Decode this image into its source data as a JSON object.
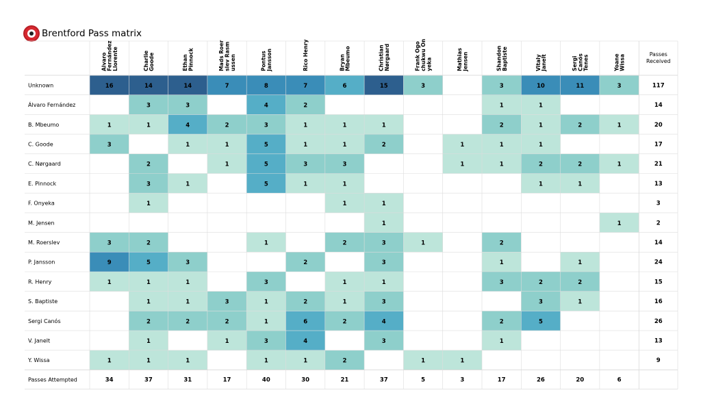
{
  "page": {
    "title": "Brentford Pass matrix",
    "logo": "brentford-crest-icon"
  },
  "chart_data": {
    "type": "heatmap",
    "title": "Brentford Pass matrix",
    "receivers": [
      "Alvaro\nFernández\nLlorente",
      "Charlie\nGoode",
      "Ethan\nPinnock",
      "Mads Roer\nslev Rasm\nussen",
      "Pontus\nJansson",
      "Rico Henry",
      "Bryan\nMbeumo",
      "Christian\nNørgaard",
      "Frank Ogo\nchukwu On\nyeka",
      "Mathias\nJensen",
      "Shandon\nBaptiste",
      "Vitaly\nJanelt",
      "Sergi\nCanós\nTenes",
      "Yoane\nWissa"
    ],
    "passers": [
      "Unknown",
      "Álvaro Fernández",
      "B. Mbeumo",
      "C. Goode",
      "C. Nørgaard",
      "E. Pinnock",
      "F. Onyeka",
      "M. Jensen",
      "M. Roerslev",
      "P. Jansson",
      "R. Henry",
      "S. Baptiste",
      "Sergi Canós",
      "V. Janelt",
      "Y. Wissa"
    ],
    "values": [
      [
        16,
        14,
        14,
        7,
        8,
        7,
        6,
        15,
        3,
        null,
        3,
        10,
        11,
        3
      ],
      [
        null,
        3,
        3,
        null,
        4,
        2,
        null,
        null,
        null,
        null,
        1,
        1,
        null,
        null
      ],
      [
        1,
        1,
        4,
        2,
        3,
        1,
        1,
        1,
        null,
        null,
        2,
        1,
        2,
        1
      ],
      [
        3,
        null,
        1,
        1,
        5,
        1,
        1,
        2,
        null,
        1,
        1,
        1,
        null,
        null
      ],
      [
        null,
        2,
        null,
        1,
        5,
        3,
        3,
        null,
        null,
        1,
        1,
        2,
        2,
        1
      ],
      [
        null,
        3,
        1,
        null,
        5,
        1,
        1,
        null,
        null,
        null,
        null,
        1,
        1,
        null
      ],
      [
        null,
        1,
        null,
        null,
        null,
        null,
        1,
        1,
        null,
        null,
        null,
        null,
        null,
        null
      ],
      [
        null,
        null,
        null,
        null,
        null,
        null,
        null,
        1,
        null,
        null,
        null,
        null,
        null,
        1
      ],
      [
        3,
        2,
        null,
        null,
        1,
        null,
        2,
        3,
        1,
        null,
        2,
        null,
        null,
        null
      ],
      [
        9,
        5,
        3,
        null,
        null,
        2,
        null,
        3,
        null,
        null,
        1,
        null,
        1,
        null
      ],
      [
        1,
        1,
        1,
        null,
        3,
        null,
        1,
        1,
        null,
        null,
        3,
        2,
        2,
        null
      ],
      [
        null,
        1,
        1,
        3,
        1,
        2,
        1,
        3,
        null,
        null,
        null,
        3,
        1,
        null
      ],
      [
        null,
        2,
        2,
        2,
        1,
        6,
        2,
        4,
        null,
        null,
        2,
        5,
        null,
        null
      ],
      [
        null,
        1,
        null,
        1,
        3,
        4,
        null,
        3,
        null,
        null,
        1,
        null,
        null,
        null
      ],
      [
        1,
        1,
        1,
        null,
        1,
        1,
        2,
        null,
        1,
        1,
        null,
        null,
        null,
        null
      ]
    ],
    "received_label": "Passes\nReceived",
    "passes_received": [
      117,
      14,
      20,
      17,
      21,
      13,
      3,
      2,
      14,
      24,
      15,
      16,
      26,
      13,
      9
    ],
    "attempted_label": "Passes Attempted",
    "passes_attempted": [
      34,
      37,
      31,
      17,
      40,
      30,
      21,
      37,
      5,
      3,
      17,
      26,
      20,
      6
    ],
    "color_scale": [
      "#bde5da",
      "#8ecfcb",
      "#55aec7",
      "#3a8db8",
      "#2d5f8e"
    ]
  }
}
